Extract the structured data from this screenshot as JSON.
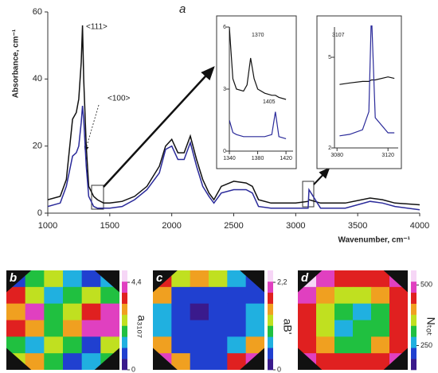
{
  "chart_data": [
    {
      "type": "line",
      "title": "a",
      "xlabel": "Wavenumber, cm⁻¹",
      "ylabel": "Absorbance, cm⁻¹",
      "annotations": [
        "<111>",
        "<100>"
      ],
      "x": [
        1000,
        1100,
        1150,
        1200,
        1230,
        1250,
        1270,
        1280,
        1290,
        1310,
        1330,
        1370,
        1400,
        1450,
        1500,
        1600,
        1700,
        1800,
        1900,
        1950,
        2000,
        2050,
        2100,
        2150,
        2200,
        2250,
        2300,
        2340,
        2400,
        2500,
        2600,
        2650,
        2700,
        2800,
        3000,
        3100,
        3107,
        3200,
        3400,
        3600,
        3700,
        3800,
        4000
      ],
      "series": [
        {
          "color": "#111111",
          "values": [
            4,
            5,
            10,
            28,
            30,
            34,
            45,
            56,
            40,
            20,
            8,
            5,
            4,
            3,
            3,
            3.5,
            5,
            8,
            14,
            20,
            22,
            18,
            18,
            23,
            16,
            10,
            6,
            4,
            8,
            9.5,
            9,
            8,
            4,
            3,
            3,
            3.5,
            4,
            3,
            3,
            4.5,
            4,
            3,
            2.5
          ]
        },
        {
          "color": "#2a2a9a",
          "values": [
            2,
            3,
            8,
            17,
            18,
            20,
            27,
            32,
            28,
            14,
            5,
            2,
            1.5,
            1.5,
            1.5,
            2,
            4,
            7,
            12,
            19,
            20,
            16,
            16,
            21,
            14,
            8,
            5,
            3,
            6,
            7,
            7,
            6,
            2,
            1.5,
            1.5,
            1.5,
            7,
            1.5,
            1.5,
            3.5,
            3,
            2,
            1
          ]
        }
      ],
      "xlim": [
        1000,
        4000
      ],
      "xticks": [
        1000,
        1500,
        2000,
        2500,
        3000,
        3500,
        4000
      ],
      "ylim": [
        0,
        60
      ],
      "yticks": [
        0,
        20,
        40,
        60
      ]
    },
    {
      "type": "line",
      "annotations": [
        "1370",
        "1405"
      ],
      "x": [
        1340,
        1345,
        1350,
        1360,
        1365,
        1370,
        1375,
        1380,
        1390,
        1400,
        1405,
        1410,
        1420
      ],
      "series": [
        {
          "color": "#111111",
          "values": [
            6,
            3.5,
            3,
            2.9,
            3.2,
            4.5,
            3.5,
            3,
            2.8,
            2.7,
            2.7,
            2.6,
            2.5
          ]
        },
        {
          "color": "#2a2a9a",
          "values": [
            1.5,
            0.9,
            0.8,
            0.7,
            0.7,
            0.7,
            0.7,
            0.7,
            0.7,
            0.8,
            1.9,
            0.7,
            0.6
          ]
        }
      ],
      "xlim": [
        1340,
        1430
      ],
      "xticks": [
        1340,
        1380,
        1420
      ],
      "ylim": [
        0,
        6
      ],
      "yticks": [
        0,
        3,
        6
      ]
    },
    {
      "type": "line",
      "annotations": [
        "3107"
      ],
      "x": [
        3082,
        3090,
        3100,
        3105,
        3107,
        3110,
        3120,
        3125
      ],
      "series": [
        {
          "color": "#111111",
          "values": [
            4.1,
            4.15,
            4.2,
            4.2,
            4.25,
            4.25,
            4.35,
            4.3
          ]
        },
        {
          "color": "#2a2a9a",
          "values": [
            2.4,
            2.45,
            2.6,
            3.2,
            6.5,
            3.0,
            2.5,
            2.5
          ]
        }
      ],
      "xlim": [
        3078,
        3128
      ],
      "xticks": [
        3080,
        3120
      ],
      "ylim": [
        2,
        6
      ],
      "yticks": [
        2,
        5
      ]
    },
    {
      "type": "heatmap",
      "title": "b",
      "zlabel": "a₃₁₀₇",
      "colors": [
        "#3a1a8c",
        "#2040d0",
        "#20b0e0",
        "#20c040",
        "#c0e020",
        "#f0a020",
        "#e02020",
        "#e040c0",
        "#f6d6f6"
      ],
      "zlim": [
        0,
        5
      ],
      "zticks": [
        {
          "value": 4.4,
          "label": "4,4"
        },
        0
      ],
      "values": [
        [
          1,
          2,
          2.5,
          1.5,
          1,
          1.5
        ],
        [
          3.5,
          2.5,
          1.5,
          2,
          2.5,
          2
        ],
        [
          3,
          4,
          2,
          2.5,
          3.5,
          4
        ],
        [
          3.5,
          3,
          2,
          3,
          4.2,
          4
        ],
        [
          2,
          1.5,
          2.5,
          2,
          1,
          2.5
        ],
        [
          2.5,
          3,
          2,
          1,
          1.5,
          2
        ]
      ]
    },
    {
      "type": "heatmap",
      "title": "c",
      "zlabel": "aB'",
      "colors": [
        "#3a1a8c",
        "#2040d0",
        "#20b0e0",
        "#20c040",
        "#c0e020",
        "#f0a020",
        "#e02020",
        "#e040c0",
        "#f6d6f6"
      ],
      "zlim": [
        0,
        2.5
      ],
      "zticks": [
        {
          "value": 2.2,
          "label": "2,2"
        },
        0
      ],
      "values": [
        [
          1.8,
          1.3,
          1.5,
          1.2,
          0.8,
          0.5
        ],
        [
          1.5,
          0.5,
          0.3,
          0.3,
          0.4,
          0.5
        ],
        [
          0.8,
          0.3,
          0.2,
          0.3,
          0.3,
          0.6
        ],
        [
          0.8,
          0.3,
          0.3,
          0.3,
          0.4,
          0.8
        ],
        [
          1.5,
          0.5,
          0.3,
          0.3,
          0.6,
          1.6
        ],
        [
          2.1,
          1.6,
          0.5,
          0.4,
          1.7,
          2.1
        ]
      ]
    },
    {
      "type": "heatmap",
      "title": "d",
      "zlabel": "Nₜₒₜ",
      "colors": [
        "#3a1a8c",
        "#2040d0",
        "#20b0e0",
        "#20c040",
        "#c0e020",
        "#f0a020",
        "#e02020",
        "#e040c0",
        "#f6d6f6"
      ],
      "zlim": [
        150,
        560
      ],
      "zticks": [
        500,
        250
      ],
      "values": [
        [
          540,
          480,
          460,
          450,
          460,
          470
        ],
        [
          470,
          420,
          350,
          340,
          400,
          450
        ],
        [
          450,
          360,
          290,
          280,
          330,
          440
        ],
        [
          440,
          340,
          280,
          290,
          330,
          440
        ],
        [
          450,
          380,
          330,
          320,
          380,
          460
        ],
        [
          470,
          450,
          430,
          440,
          460,
          480
        ]
      ]
    }
  ]
}
